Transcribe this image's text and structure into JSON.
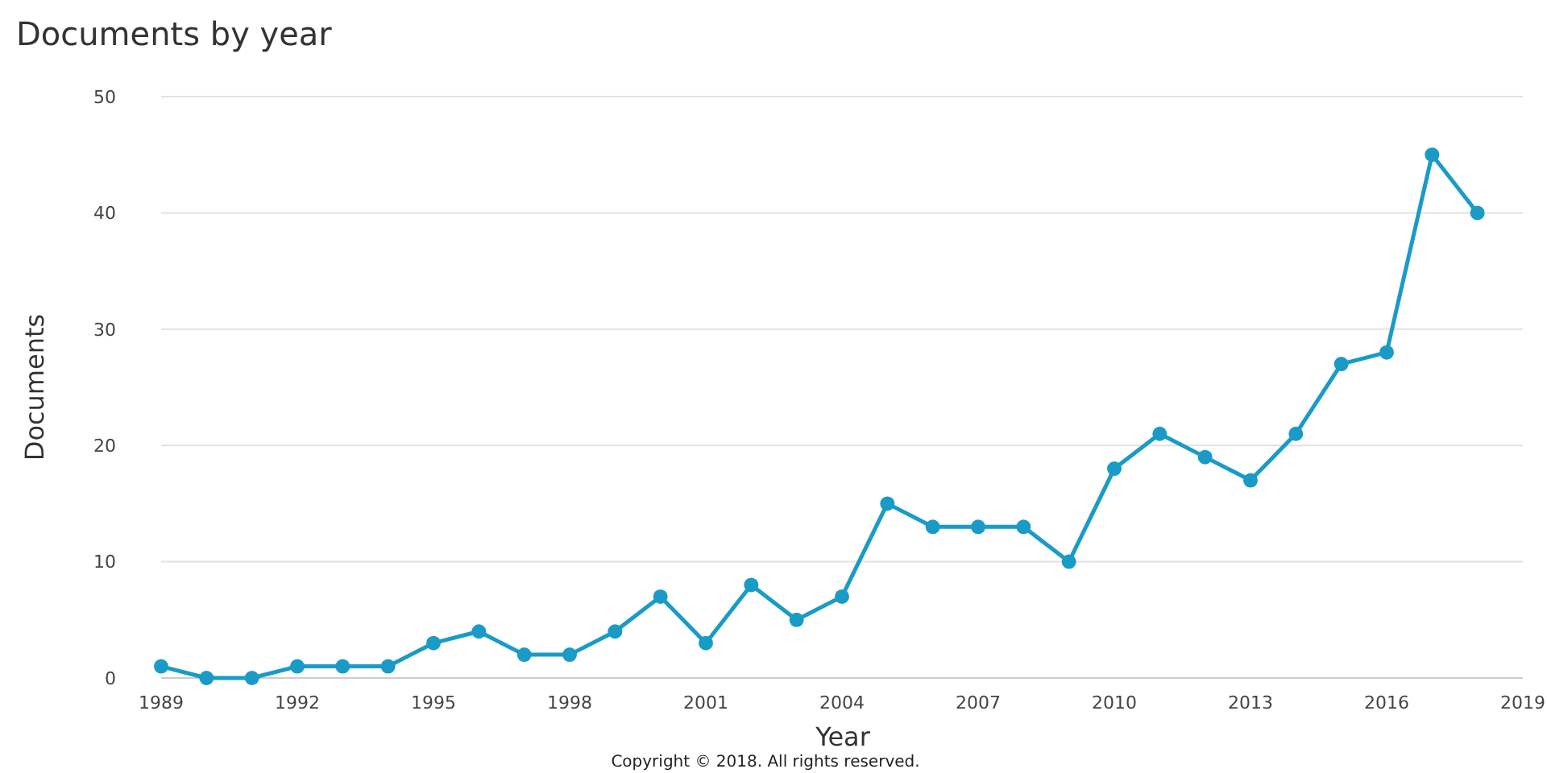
{
  "chart_data": {
    "type": "line",
    "title": "Documents by year",
    "xlabel": "Year",
    "ylabel": "Documents",
    "x": [
      1989,
      1990,
      1991,
      1992,
      1993,
      1994,
      1995,
      1996,
      1997,
      1998,
      1999,
      2000,
      2001,
      2002,
      2003,
      2004,
      2005,
      2006,
      2007,
      2008,
      2009,
      2010,
      2011,
      2012,
      2013,
      2014,
      2015,
      2016,
      2017,
      2018
    ],
    "series": [
      {
        "color": "#1a9bc7",
        "values": [
          1,
          0,
          0,
          1,
          1,
          1,
          3,
          4,
          2,
          2,
          4,
          7,
          3,
          8,
          5,
          7,
          15,
          13,
          13,
          13,
          10,
          18,
          21,
          19,
          17,
          21,
          27,
          28,
          45,
          40
        ]
      }
    ],
    "xlim": [
      1989,
      2019
    ],
    "xticks": [
      1989,
      1992,
      1995,
      1998,
      2001,
      2004,
      2007,
      2010,
      2013,
      2016,
      2019
    ],
    "ylim": [
      0,
      50
    ],
    "yticks": [
      0,
      10,
      20,
      30,
      40,
      50
    ],
    "grid": "y",
    "marker": "circle",
    "line_style": "solid",
    "annotations": [
      "Copyright © 2018. All rights reserved."
    ]
  }
}
